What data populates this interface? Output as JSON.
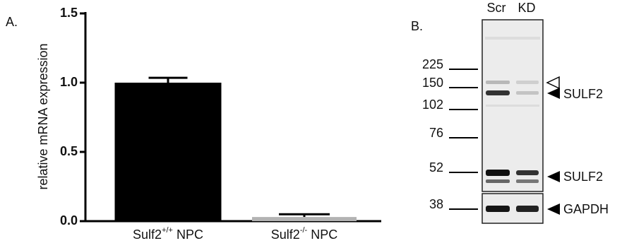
{
  "chart_data": {
    "type": "bar",
    "panel_label": "A.",
    "ylabel": "relative mRNA expression",
    "categories": [
      "Sulf2+/+ NPC",
      "Sulf2-/- NPC"
    ],
    "values": [
      1.0,
      0.03
    ],
    "errors": [
      0.035,
      0.02
    ],
    "colors": [
      "#000000",
      "#b3b3b3"
    ],
    "ylim": [
      0,
      1.5
    ],
    "yticks": [
      {
        "value": 0,
        "label": "0.0"
      },
      {
        "value": 0.5,
        "label": "0.5"
      },
      {
        "value": 1,
        "label": "1.0"
      },
      {
        "value": 1.5,
        "label": "1.5"
      }
    ]
  },
  "blot": {
    "panel_label": "B.",
    "lanes": [
      "Scr",
      "KD"
    ],
    "markers": [
      225,
      150,
      102,
      76,
      52,
      38
    ],
    "band_labels": [
      "SULF2",
      "SULF2",
      "GAPDH"
    ]
  }
}
